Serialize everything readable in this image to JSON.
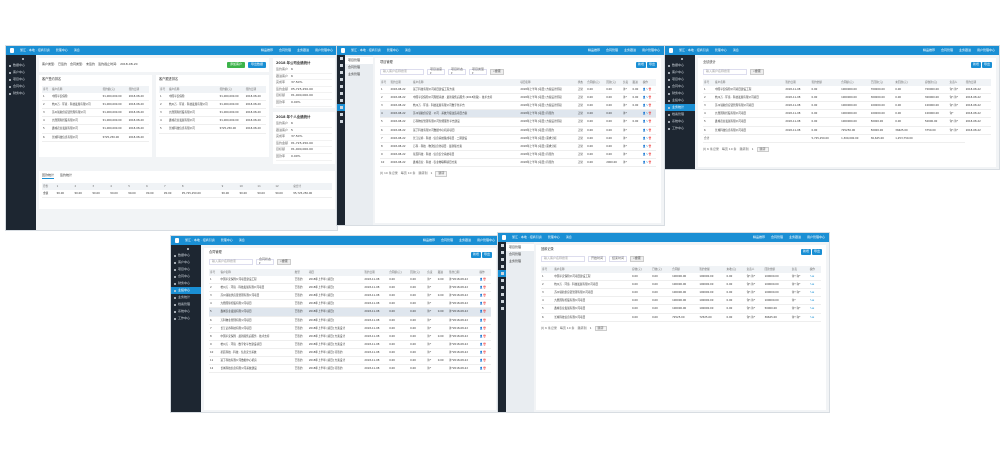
{
  "header": {
    "left": [
      "浙江 · 本地 · 招商引资",
      "管理中心",
      "消息"
    ],
    "right": [
      "精品推荐",
      "合同管理",
      "业务跟进",
      "用户管理中心"
    ]
  },
  "colors": {
    "header": "#1a8fd4",
    "sidebar": "#1d2631",
    "green": "#3cb34a",
    "delete": "#e33"
  },
  "sidebar_items": [
    "数据中心",
    "客户中心",
    "项目中心",
    "合同中心",
    "财务中心",
    "业绩中心",
    "业务统计",
    "档案管理",
    "系统中心",
    "工作中心"
  ],
  "sub_menu": [
    "项目管理",
    "合同管理",
    "业务管理"
  ],
  "dashboard": {
    "filters": [
      "客户类型:",
      "已签约",
      "合同类型:",
      "未签约",
      "签约截止时间:",
      "2018-08-20"
    ],
    "btn_add": "添加客户",
    "btn_export": "导出数据",
    "left_title": "客户签约排名",
    "right_title": "客户跟进排名",
    "cols": [
      "序号",
      "客户名称",
      "签约额(元)",
      "签约日期"
    ],
    "left_rows": [
      [
        "1",
        "中国平安保险",
        "¥1,000,000.00",
        "2018-08-20"
      ],
      [
        "2",
        "杭州万 · 环境 · 科技发展有限公司",
        "¥1,000,000.00",
        "2018-08-20"
      ],
      [
        "3",
        "苏州领航供应链管理有限公司",
        "¥1,000,000.00",
        "2018-08-20"
      ],
      [
        "4",
        "九鼎国际控股有限公司",
        "¥1,000,000.00",
        "2018-08-20"
      ],
      [
        "5",
        "鑫城农业发展有限公司",
        "¥1,000,000.00",
        "2018-08-20"
      ],
      [
        "6",
        "长城科技信息有限公司",
        "¥725,250.00",
        "2018-08-20"
      ]
    ],
    "right_rows": [
      [
        "1",
        "中国平安保险",
        "¥1,000,000.00",
        "2018-08-20"
      ],
      [
        "2",
        "杭州万 · 环境 · 科技发展有限公司",
        "¥1,000,000.00",
        "2018-08-20"
      ],
      [
        "3",
        "九鼎国际控股有限公司",
        "¥1,000,000.00",
        "2018-08-20"
      ],
      [
        "4",
        "鑫城农业发展有限公司",
        "¥1,000,000.00",
        "2018-08-20"
      ],
      [
        "5",
        "长城科技信息有限公司",
        "¥725,250.00",
        "2018-08-20"
      ]
    ],
    "company_title": "2018 年公司业绩统计",
    "company": [
      [
        "签约客户",
        "6"
      ],
      [
        "跟进客户",
        "6"
      ],
      [
        "完成率",
        "37.50%"
      ],
      [
        "签约金额",
        "¥5,725,250.00"
      ],
      [
        "目标额",
        "¥1,000,000.00"
      ],
      [
        "回款率",
        "0.00%"
      ]
    ],
    "personal_title": "2018 年个人业绩统计",
    "personal": [
      [
        "签约客户",
        "6"
      ],
      [
        "跟进客户",
        "5"
      ],
      [
        "完成率",
        "37.50%"
      ],
      [
        "签约金额",
        "¥1,725,250.00"
      ],
      [
        "目标额",
        "¥1,000,000.00"
      ],
      [
        "回款率",
        "0.00%"
      ]
    ],
    "tabs": [
      "回款统计",
      "签约统计"
    ],
    "month_cols": [
      "月份",
      "1",
      "2",
      "3",
      "4",
      "5",
      "6",
      "7",
      "8",
      "9",
      "10",
      "11",
      "12",
      "总合计"
    ],
    "month_row": [
      "金额",
      "¥0.00",
      "¥0.00",
      "¥0.00",
      "¥0.00",
      "¥0.00",
      "¥0.00",
      "¥0.00",
      "¥5,725,250.00",
      "¥0.00",
      "¥0.00",
      "¥0.00",
      "¥0.00",
      "¥5,725,250.00"
    ]
  },
  "windows": [
    {
      "title": "项目管理",
      "search": "输入客户名称搜索",
      "selects": [
        "项目进度 ▾",
        "项目状态 ▾",
        "项目类型 ▾"
      ],
      "search_btn": "搜索",
      "buttons": [
        "新增",
        "导出"
      ],
      "cols": [
        "序号",
        "签约日期",
        "客户名称",
        "项目名称",
        "状态",
        "合同额(元)",
        "回款(元)",
        "负责",
        "跟进",
        "操作"
      ],
      "rows": [
        [
          "1",
          "2018-08-22",
          "富丁科技有限公司项目建设工程方案",
          "2018年上半年 [项目] 方案设计阶段",
          "正常",
          "0.00",
          "0.00",
          "许*",
          "0.00"
        ],
        [
          "2",
          "2018-08-22",
          "中国平安保险公司理赔系统 · 最新版售后服务 (2018新版) · 技术支持",
          "2018年上半年 [项目] 方案设计阶段",
          "正常",
          "0.00",
          "0.00",
          "许*",
          "0.00"
        ],
        [
          "3",
          "2018-08-22",
          "杭州万 · 环境 · 科技发展有限公司数字化平台",
          "2018年上半年 [项目] 方案设计阶段",
          "正常",
          "0.00",
          "0.00",
          "许*",
          "0.00"
        ],
        [
          "4",
          "2018-08-22",
          "苏州领航供应链 · 公司 · 系统升级改造项目方案",
          "2018年上半年 [项目] 待签约",
          "正常",
          "0.00",
          "0.00",
          "许*",
          ""
        ],
        [
          "5",
          "2018-08-22",
          "万科物业管理有限公司智能服务平台建设",
          "2018年上半年 [项目] 方案设计阶段",
          "正常",
          "0.00",
          "0.00",
          "许*",
          "0.00"
        ],
        [
          "6",
          "2018-08-22",
          "富丁科技有限公司数据中心机房项目",
          "2018年上半年 [项目] 待签约",
          "正常",
          "0.00",
          "0.00",
          "许*",
          ""
        ],
        [
          "7",
          "2018-08-22",
          "长江证券 · 科技 · 信息系统集成项目 · 二期建设",
          "2018年上半年 [项目] 需求分析",
          "正常",
          "0.00",
          "0.00",
          "许*",
          ""
        ],
        [
          "8",
          "2018-08-22",
          "万科 · 科技 · 物流信息化项目 · 最新版方案",
          "2018年上半年 [项目] 需求分析",
          "正常",
          "0.00",
          "0.00",
          "许*",
          ""
        ],
        [
          "9",
          "2018-08-22",
          "星辰科技 · 科技 · 信息安全系统项目",
          "2018年上半年 [项目] 待签约",
          "正常",
          "0.00",
          "0.00",
          "许*",
          ""
        ],
        [
          "10",
          "2018-08-22",
          "鑫城农业 · 科技 · 农业物联网项目方案",
          "2018年上半年 [项目] 待签约",
          "正常",
          "0.00",
          "2000.00",
          "许*",
          ""
        ]
      ],
      "pager": [
        "共 10 条记录",
        "每页 10 条",
        "跳转到",
        "1",
        "跳转"
      ]
    },
    {
      "title": "业绩统计",
      "search": "输入客户名称搜索",
      "selects": [],
      "search_btn": "搜索",
      "buttons": [
        "新增",
        "导出"
      ],
      "cols": [
        "序号",
        "客户名称",
        "签约日期",
        "签约金额",
        "合同额(元)",
        "已回款(元)",
        "未回款(元)",
        "应收款(元)",
        "负责人",
        "签约日期"
      ],
      "rows": [
        [
          "1",
          "中国平安保险公司项目建设工程",
          "2018-11-08",
          "0.00",
          "1000000.00",
          "700000.00",
          "0.00",
          "700000.00",
          "许*,许*",
          "2018-08-22"
        ],
        [
          "2",
          "杭州万 · 环境 · 科技发展有限公司项目",
          "2018-11-08",
          "0.00",
          "1000000.00",
          "300000.00",
          "0.00",
          "300000.00",
          "许*,许*",
          "2018-08-22"
        ],
        [
          "3",
          "苏州领航供应链管理有限公司项目",
          "2018-11-08",
          "0.00",
          "1000000.00",
          "100000.00",
          "0.00",
          "100000.00",
          "许*,许*",
          "2018-08-22"
        ],
        [
          "4",
          "九鼎国际控股有限公司项目",
          "2018-11-08",
          "0.00",
          "1000000.00",
          "100000.00",
          "0.00",
          "100000.00",
          "许*",
          "2018-08-22"
        ],
        [
          "5",
          "鑫城农业发展有限公司项目",
          "2018-11-08",
          "0.00",
          "1000000.00",
          "50000.00",
          "0.00",
          "50000.00",
          "许*,许*",
          "2018-08-22"
        ],
        [
          "6",
          "长城科技信息有限公司项目",
          "2018-11-08",
          "0.00",
          "725250.00",
          "50000.00",
          "36625.00",
          "3750.00",
          "许*,许*",
          "2018-08-22"
        ]
      ],
      "total": [
        "合计",
        "",
        "",
        "5,725,250.00",
        "1,300,000.00",
        "36,625.00",
        "1,253,750.00",
        "",
        ""
      ],
      "pager": [
        "共 6 条记录",
        "每页 10 条",
        "跳转到",
        "1",
        "跳转"
      ]
    },
    {
      "title": "合同管理",
      "search": "输入客户名称搜索",
      "selects": [
        "合同状态 ▾"
      ],
      "search_btn": "搜索",
      "buttons": [
        "新增",
        "导出"
      ],
      "cols": [
        "序号",
        "客户名称",
        "类型",
        "项目",
        "签约日期",
        "合同额(元)",
        "回款(元)",
        "负责",
        "跟进",
        "签约日期",
        "操作"
      ],
      "rows": [
        [
          "1",
          "中国平安保险公司项目建设工程",
          "已签约",
          "2018年上半年 [项目]",
          "2018-11-08",
          "0.00",
          "0.00",
          "许*",
          "0.00",
          "许*2018-08-22"
        ],
        [
          "2",
          "杭州万 · 环境 · 科技发展有限公司项目",
          "已签约",
          "2018年上半年 [项目]",
          "2018-11-08",
          "0.00",
          "0.00",
          "许*",
          "",
          "许*2018-08-22"
        ],
        [
          "3",
          "苏州领航供应链管理有限公司项目",
          "已签约",
          "2018年上半年 [项目]",
          "2018-11-08",
          "0.00",
          "0.00",
          "许*",
          "0.00",
          "许*2018-08-22"
        ],
        [
          "4",
          "九鼎国际控股有限公司项目",
          "已签约",
          "2018年上半年 [项目]",
          "2018-11-08",
          "0.00",
          "0.00",
          "许*",
          "",
          "许*2018-08-22"
        ],
        [
          "5",
          "鑫城农业发展有限公司项目",
          "已签约",
          "2018年上半年 [项目]",
          "2018-11-08",
          "0.00",
          "0.00",
          "许*",
          "0.00",
          "许*2018-08-22"
        ],
        [
          "6",
          "万科物业管理有限公司项目",
          "已签约",
          "2018年上半年 [项目]",
          "2018-11-08",
          "0.00",
          "0.00",
          "许*",
          "",
          "许*2018-08-22"
        ],
        [
          "7",
          "长江证券科技有限公司项目",
          "已签约",
          "2018年上半年 [项目] 方案设计",
          "2018-11-08",
          "0.00",
          "0.00",
          "许*",
          "",
          "许*2018-08-22"
        ],
        [
          "8",
          "中国平安保险 · 最新版售后服务 · 技术支持",
          "已签约",
          "2018年上半年 [项目] 方案设计",
          "2018-11-08",
          "0.00",
          "0.00",
          "许*",
          "0.00",
          "许*2018-08-22"
        ],
        [
          "9",
          "杭州万 · 环境 · 数字化平台建设项目",
          "已签约",
          "2018年上半年 [项目] 方案设计",
          "2018-11-08",
          "0.00",
          "0.00",
          "许*",
          "",
          "许*2018-08-22"
        ],
        [
          "10",
          "星辰科技 · 科技 · 信息安全系统",
          "已签约",
          "2018年上半年 [项目] 待签约",
          "2018-11-08",
          "0.00",
          "0.00",
          "许*",
          "",
          "许*2018-08-22"
        ],
        [
          "11",
          "富丁科技有限公司数据中心机房",
          "已签约",
          "2018年上半年 [项目] 方案设计",
          "2018-11-08",
          "0.00",
          "0.00",
          "许*",
          "0.00",
          "许*2018-08-22"
        ],
        [
          "12",
          "长城科技信息有限公司系统建设",
          "已签约",
          "2018年上半年 [项目] 待签约",
          "2018-11-08",
          "0.00",
          "0.00",
          "许*",
          "",
          "许*2018-08-22"
        ]
      ]
    },
    {
      "title": "回款记录",
      "search": "输入客户名称搜索",
      "selects": [
        "开始时间",
        "结束时间"
      ],
      "search_btn": "搜索",
      "buttons": [
        "新增",
        "导出"
      ],
      "cols": [
        "序号",
        "客户名称",
        "应收(元)",
        "已收(元)",
        "合同额",
        "签约金额",
        "未收(元)",
        "负责人",
        "回款金额",
        "负责",
        "操作"
      ],
      "rows": [
        [
          "1",
          "中国平安保险公司项目建设工程",
          "0.00",
          "0.00",
          "100000.00",
          "100000.00",
          "0.00",
          "许*,许*",
          "100000.00",
          "许*,许*"
        ],
        [
          "2",
          "杭州万 · 环境 · 科技发展有限公司项目",
          "0.00",
          "0.00",
          "100000.00",
          "100000.00",
          "0.00",
          "许*,许*",
          "100000.00",
          "许*,许*"
        ],
        [
          "3",
          "苏州领航供应链管理有限公司项目",
          "0.00",
          "0.00",
          "100000.00",
          "100000.00",
          "0.00",
          "许*,许*",
          "100000.00",
          "许*,许*"
        ],
        [
          "4",
          "九鼎国际控股有限公司项目",
          "0.00",
          "0.00",
          "100000.00",
          "100000.00",
          "0.00",
          "许*,许*",
          "100000.00",
          "许*"
        ],
        [
          "5",
          "鑫城农业发展有限公司项目",
          "0.00",
          "0.00",
          "100000.00",
          "100000.00",
          "0.00",
          "许*,许*",
          "50000.00",
          "许*,许*"
        ],
        [
          "6",
          "长城科技信息有限公司项目",
          "0.00",
          "0.00",
          "72525.00",
          "72525.00",
          "0.00",
          "许*,许*",
          "36625.00",
          "许*,许*"
        ]
      ],
      "pager": [
        "共 6 条记录",
        "每页 10 条",
        "跳转到",
        "1",
        "跳转"
      ]
    }
  ]
}
